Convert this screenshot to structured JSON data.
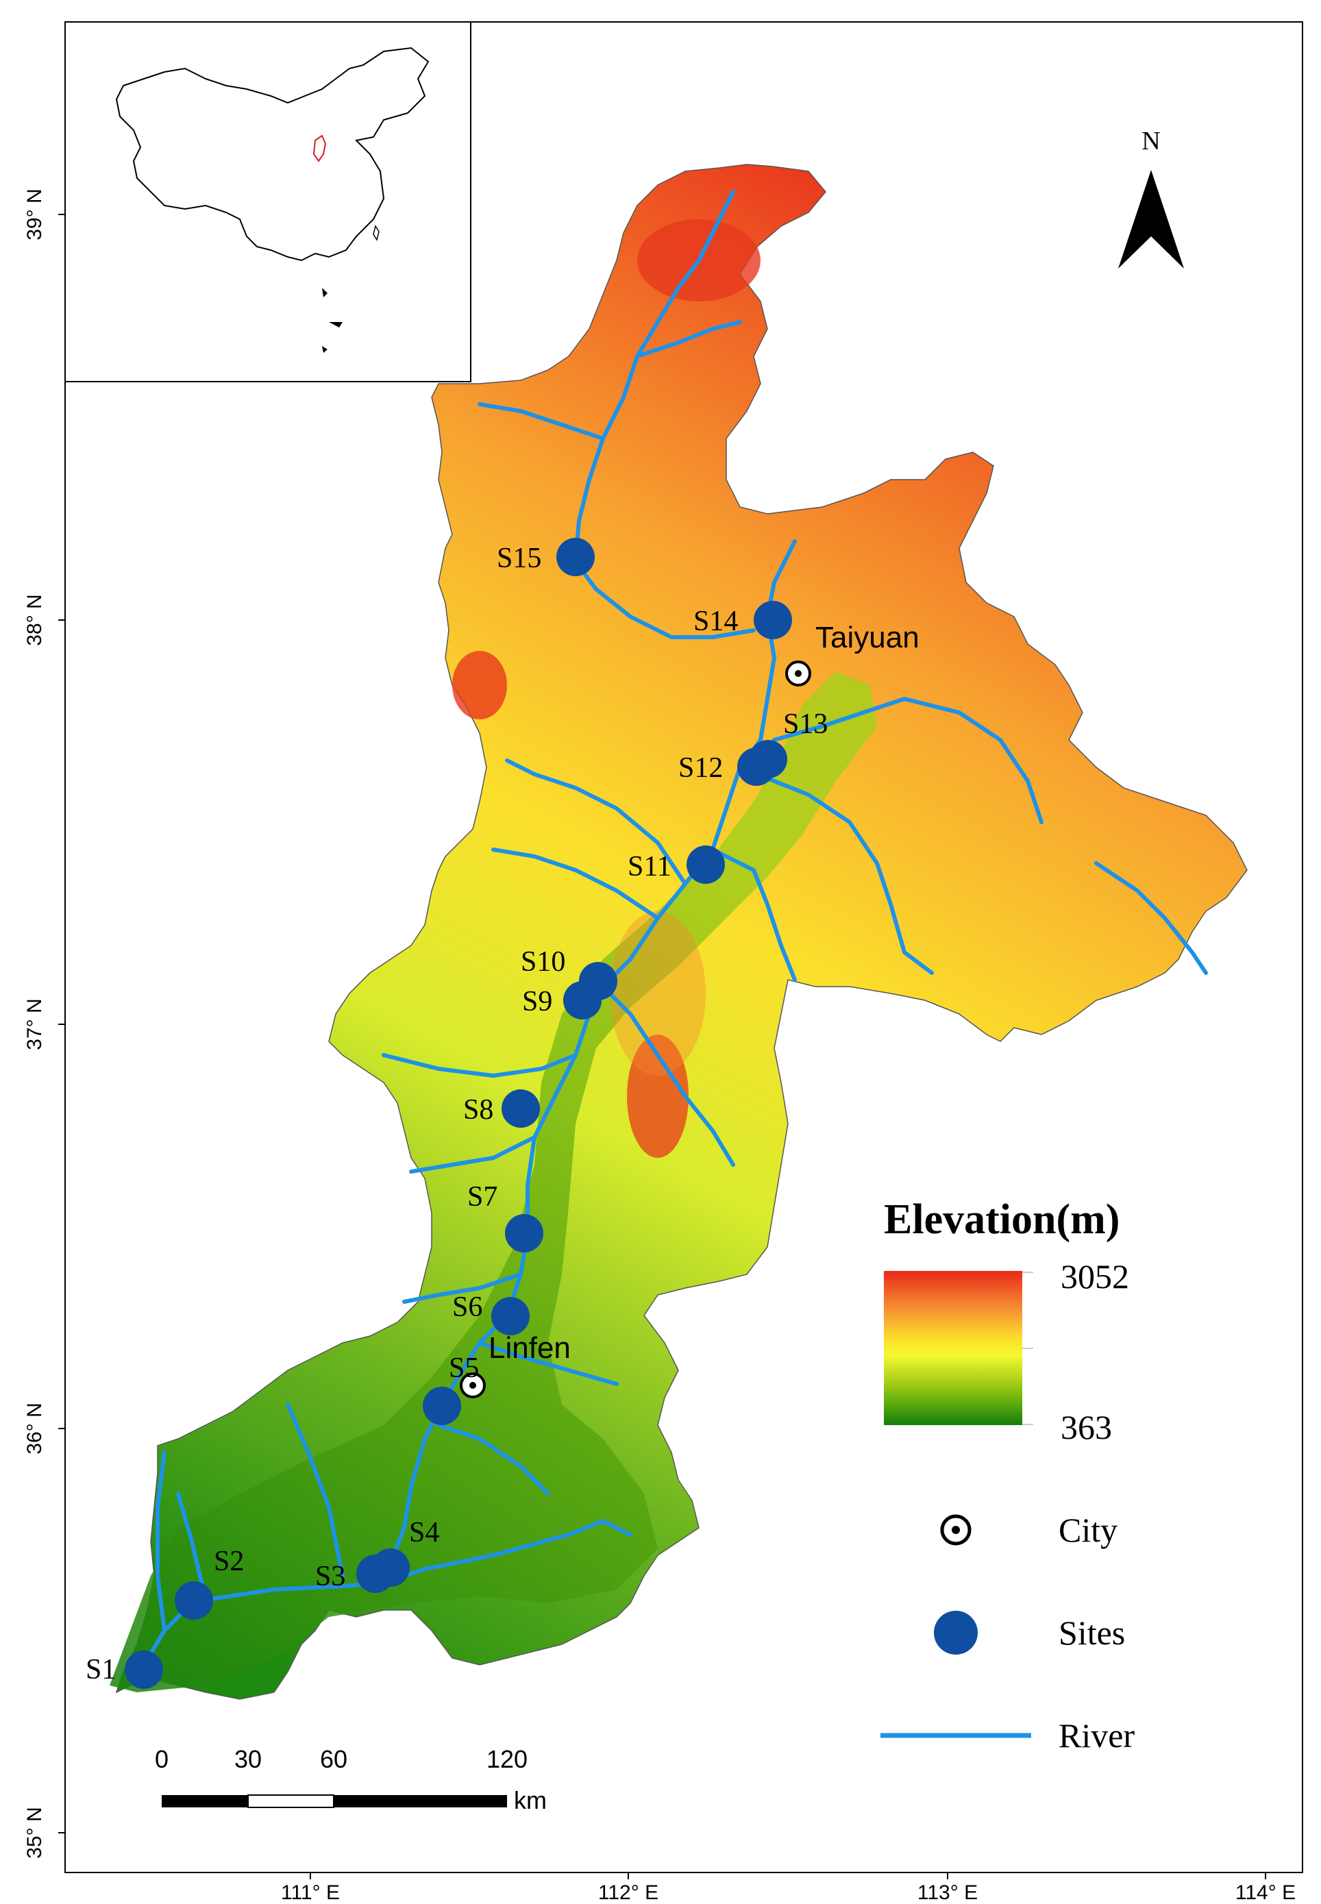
{
  "map": {
    "axes": {
      "lat_labels": [
        "39° N",
        "38° N",
        "37° N",
        "36° N",
        "35° N"
      ],
      "lon_labels": [
        "111° E",
        "112° E",
        "113° E",
        "114° E"
      ]
    },
    "north_arrow": {
      "label": "N"
    },
    "cities": [
      {
        "name": "Taiyuan"
      },
      {
        "name": "Linfen"
      }
    ],
    "sites": [
      "S1",
      "S2",
      "S3",
      "S4",
      "S5",
      "S6",
      "S7",
      "S8",
      "S9",
      "S10",
      "S11",
      "S12",
      "S13",
      "S14",
      "S15"
    ],
    "legend": {
      "title": "Elevation(m)",
      "max": "3052",
      "min": "363",
      "colors": [
        "#e8291b",
        "#f79233",
        "#fbe32c",
        "#f4f730",
        "#a7cf19",
        "#62ae0c",
        "#137d0b"
      ],
      "city_label": "City",
      "sites_label": "Sites",
      "river_label": "River"
    },
    "scale_bar": {
      "ticks": [
        "0",
        "30",
        "60",
        "120"
      ],
      "unit": "km"
    },
    "colors": {
      "site": "#0f4ea0",
      "river": "#1e92e6"
    }
  }
}
